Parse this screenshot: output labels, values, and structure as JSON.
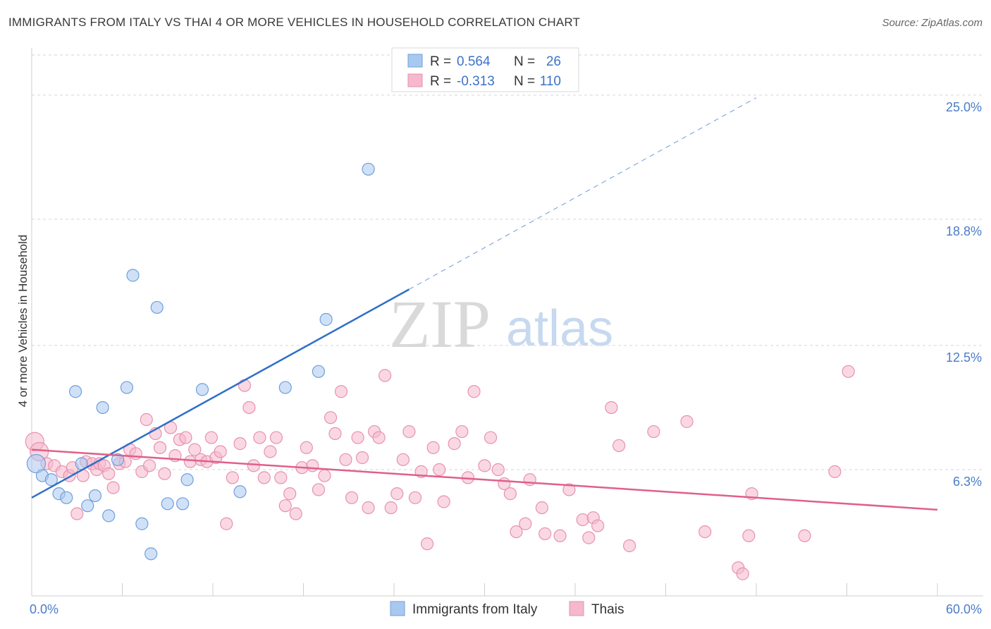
{
  "chart_data": {
    "type": "scatter",
    "title": "IMMIGRANTS FROM ITALY VS THAI 4 OR MORE VEHICLES IN HOUSEHOLD CORRELATION CHART",
    "source": "Source: ZipAtlas.com",
    "ylabel": "4 or more Vehicles in Household",
    "xlim": [
      0,
      60
    ],
    "ylim": [
      0,
      27
    ],
    "x_tick_labels": [
      {
        "value": 0,
        "label": "0.0%"
      },
      {
        "value": 60,
        "label": "60.0%"
      }
    ],
    "y_tick_labels": [
      {
        "value": 6.3,
        "label": "6.3%"
      },
      {
        "value": 12.5,
        "label": "12.5%"
      },
      {
        "value": 18.8,
        "label": "18.8%"
      },
      {
        "value": 25.0,
        "label": "25.0%"
      }
    ],
    "grid": "horizontal-dashed",
    "legend_top": {
      "placement": "top-center",
      "rows": [
        {
          "r_label": "R =",
          "r_value": "0.564",
          "n_label": "N =",
          "n_value": "26",
          "color": "#a9c8f0"
        },
        {
          "r_label": "R =",
          "r_value": "-0.313",
          "n_label": "N =",
          "n_value": "110",
          "color": "#f5b8cc"
        }
      ]
    },
    "legend_bottom": [
      {
        "label": "Immigrants from Italy",
        "color": "#a9c8f0"
      },
      {
        "label": "Thais",
        "color": "#f5b8cc"
      }
    ],
    "watermark": {
      "zip": "ZIP",
      "atlas": "atlas"
    },
    "series": [
      {
        "name": "Immigrants from Italy",
        "color": "#a9c8f0",
        "stroke": "#6f9fdc",
        "trend_color": "#2f6fc9",
        "trend": {
          "x0": 0,
          "y0": 4.9,
          "x1": 25,
          "y1": 15.3,
          "dash_to_x": 48
        },
        "points": [
          [
            0.3,
            6.6
          ],
          [
            0.7,
            6.0
          ],
          [
            1.3,
            5.8
          ],
          [
            1.8,
            5.1
          ],
          [
            2.3,
            4.9
          ],
          [
            2.9,
            10.2
          ],
          [
            3.3,
            6.6
          ],
          [
            3.7,
            4.5
          ],
          [
            4.2,
            5.0
          ],
          [
            4.7,
            9.4
          ],
          [
            5.1,
            4.0
          ],
          [
            5.7,
            6.8
          ],
          [
            6.3,
            10.4
          ],
          [
            6.7,
            16.0
          ],
          [
            7.3,
            3.6
          ],
          [
            7.9,
            2.1
          ],
          [
            8.3,
            14.4
          ],
          [
            9.0,
            4.6
          ],
          [
            10.0,
            4.6
          ],
          [
            10.3,
            5.8
          ],
          [
            11.3,
            10.3
          ],
          [
            13.8,
            5.2
          ],
          [
            16.8,
            10.4
          ],
          [
            19.0,
            11.2
          ],
          [
            19.5,
            13.8
          ],
          [
            22.3,
            21.3
          ]
        ]
      },
      {
        "name": "Thais",
        "color": "#f5b8cc",
        "stroke": "#e792ad",
        "trend_color": "#e0608a",
        "trend": {
          "x0": 0,
          "y0": 7.3,
          "x1": 60,
          "y1": 4.3
        },
        "points": [
          [
            0.2,
            7.7
          ],
          [
            0.5,
            7.2
          ],
          [
            1.0,
            6.6
          ],
          [
            1.5,
            6.5
          ],
          [
            2.0,
            6.2
          ],
          [
            2.5,
            6.0
          ],
          [
            2.7,
            6.4
          ],
          [
            3.0,
            4.1
          ],
          [
            3.4,
            6.0
          ],
          [
            3.6,
            6.7
          ],
          [
            4.0,
            6.6
          ],
          [
            4.3,
            6.3
          ],
          [
            4.5,
            6.6
          ],
          [
            4.8,
            6.5
          ],
          [
            5.1,
            6.1
          ],
          [
            5.4,
            5.4
          ],
          [
            5.8,
            6.6
          ],
          [
            6.2,
            6.7
          ],
          [
            6.5,
            7.3
          ],
          [
            6.9,
            7.1
          ],
          [
            7.3,
            6.2
          ],
          [
            7.6,
            8.8
          ],
          [
            7.8,
            6.5
          ],
          [
            8.2,
            8.1
          ],
          [
            8.5,
            7.4
          ],
          [
            8.8,
            6.1
          ],
          [
            9.2,
            8.4
          ],
          [
            9.5,
            7.0
          ],
          [
            9.8,
            7.8
          ],
          [
            10.2,
            7.9
          ],
          [
            10.5,
            6.7
          ],
          [
            10.8,
            7.3
          ],
          [
            11.2,
            6.8
          ],
          [
            11.6,
            6.7
          ],
          [
            11.9,
            7.9
          ],
          [
            12.2,
            6.9
          ],
          [
            12.5,
            7.2
          ],
          [
            12.9,
            3.6
          ],
          [
            13.3,
            5.9
          ],
          [
            13.8,
            7.6
          ],
          [
            14.1,
            10.5
          ],
          [
            14.4,
            9.4
          ],
          [
            14.7,
            6.5
          ],
          [
            15.1,
            7.9
          ],
          [
            15.4,
            5.9
          ],
          [
            15.8,
            7.2
          ],
          [
            16.2,
            7.9
          ],
          [
            16.5,
            5.9
          ],
          [
            16.8,
            4.5
          ],
          [
            17.1,
            5.1
          ],
          [
            17.5,
            4.1
          ],
          [
            17.9,
            6.4
          ],
          [
            18.2,
            7.4
          ],
          [
            18.6,
            6.5
          ],
          [
            19.0,
            5.3
          ],
          [
            19.4,
            6.0
          ],
          [
            19.8,
            8.9
          ],
          [
            20.1,
            8.1
          ],
          [
            20.5,
            10.2
          ],
          [
            20.8,
            6.8
          ],
          [
            21.2,
            4.9
          ],
          [
            21.6,
            7.9
          ],
          [
            21.9,
            6.9
          ],
          [
            22.3,
            4.4
          ],
          [
            22.7,
            8.2
          ],
          [
            23.0,
            7.9
          ],
          [
            23.4,
            11.0
          ],
          [
            23.8,
            4.4
          ],
          [
            24.2,
            5.1
          ],
          [
            24.6,
            6.8
          ],
          [
            25.0,
            8.2
          ],
          [
            25.4,
            4.9
          ],
          [
            25.8,
            6.2
          ],
          [
            26.2,
            2.6
          ],
          [
            26.6,
            7.4
          ],
          [
            27.0,
            6.3
          ],
          [
            27.3,
            4.7
          ],
          [
            28.0,
            7.6
          ],
          [
            28.5,
            8.2
          ],
          [
            28.9,
            5.9
          ],
          [
            29.3,
            10.2
          ],
          [
            30.0,
            6.5
          ],
          [
            30.4,
            7.9
          ],
          [
            30.9,
            6.3
          ],
          [
            31.3,
            5.6
          ],
          [
            31.7,
            5.1
          ],
          [
            32.1,
            3.2
          ],
          [
            32.7,
            3.6
          ],
          [
            33.0,
            5.8
          ],
          [
            33.8,
            4.4
          ],
          [
            34.0,
            3.1
          ],
          [
            35.0,
            3.0
          ],
          [
            35.6,
            5.3
          ],
          [
            36.5,
            3.8
          ],
          [
            36.9,
            2.9
          ],
          [
            37.2,
            3.9
          ],
          [
            37.5,
            3.5
          ],
          [
            38.4,
            9.4
          ],
          [
            38.9,
            7.5
          ],
          [
            39.6,
            2.5
          ],
          [
            41.2,
            8.2
          ],
          [
            43.4,
            8.7
          ],
          [
            44.6,
            3.2
          ],
          [
            46.8,
            1.4
          ],
          [
            47.1,
            1.1
          ],
          [
            47.5,
            3.0
          ],
          [
            47.7,
            5.1
          ],
          [
            51.2,
            3.0
          ],
          [
            53.2,
            6.2
          ],
          [
            54.1,
            11.2
          ]
        ]
      }
    ]
  }
}
